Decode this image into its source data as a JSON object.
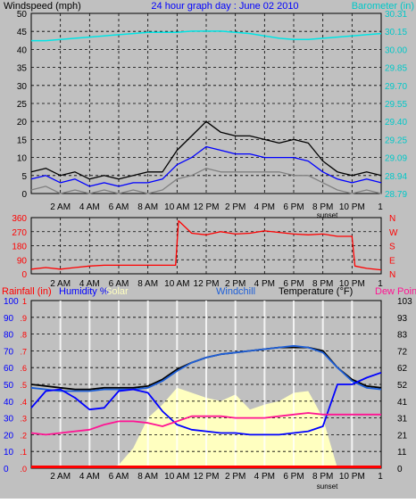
{
  "colors": {
    "frame": "#c0c0c0",
    "panel": "#c0c0c0",
    "grid": "#000000",
    "wind_gust": "#000000",
    "wind_avg": "#0000ff",
    "wind_low": "#808080",
    "barometer": "#00e5e5",
    "wind_dir": "#ff0000",
    "rain": "#ff0000",
    "humidity": "#0000ff",
    "solar": "#ffffc0",
    "windchill": "#1e5fd8",
    "temperature": "#000000",
    "dew_point": "#ff1493"
  },
  "header": {
    "left": "Windspeed (mph)",
    "center": "24 hour graph day : June 02 2010",
    "right": "Barometer (in)"
  },
  "time_axis": {
    "labels": [
      "2 AM",
      "4 AM",
      "6 AM",
      "8 AM",
      "10 AM",
      "12 PM",
      "2 PM",
      "4 PM",
      "6 PM",
      "8 PM",
      "10 PM"
    ],
    "hours": [
      2,
      4,
      6,
      8,
      10,
      12,
      14,
      16,
      18,
      20,
      22
    ],
    "sunset_label": "sunset",
    "sunset_hour": 20.3,
    "end_label": "1"
  },
  "chart_data": [
    {
      "type": "line",
      "title": "24 hour graph day : June 02 2010",
      "ylabel": "Windspeed (mph)",
      "ylim": [
        0,
        50
      ],
      "yticks": [
        "0",
        "5",
        "10",
        "15",
        "20",
        "25",
        "30",
        "35",
        "40",
        "45",
        "50"
      ],
      "y2label": "Barometer (in)",
      "y2lim": [
        28.79,
        30.31
      ],
      "y2ticks": [
        "28.79",
        "28.94",
        "29.09",
        "29.25",
        "29.40",
        "29.55",
        "29.70",
        "29.85",
        "30.00",
        "30.15",
        "30.31"
      ],
      "x": [
        0,
        1,
        2,
        3,
        4,
        5,
        6,
        7,
        8,
        9,
        10,
        11,
        12,
        13,
        14,
        15,
        16,
        17,
        18,
        19,
        20,
        21,
        22,
        23,
        24
      ],
      "series": [
        {
          "key": "wind_gust",
          "values": [
            6,
            7,
            5,
            6,
            4,
            5,
            4,
            5,
            6,
            6,
            12,
            16,
            20,
            17,
            16,
            16,
            15,
            14,
            15,
            14,
            9,
            6,
            5,
            6,
            5
          ]
        },
        {
          "key": "wind_avg",
          "values": [
            4,
            5,
            3,
            4,
            2,
            3,
            2,
            3,
            3,
            4,
            8,
            10,
            13,
            12,
            11,
            11,
            10,
            10,
            10,
            9,
            6,
            4,
            3,
            4,
            3
          ]
        },
        {
          "key": "wind_low",
          "values": [
            1,
            2,
            0,
            1,
            0,
            1,
            0,
            1,
            0,
            1,
            4,
            5,
            7,
            6,
            6,
            6,
            6,
            6,
            5,
            5,
            3,
            1,
            0,
            1,
            0
          ]
        },
        {
          "key": "barometer",
          "axis": "y2",
          "values": [
            30.08,
            30.08,
            30.09,
            30.1,
            30.11,
            30.12,
            30.13,
            30.14,
            30.15,
            30.15,
            30.15,
            30.16,
            30.16,
            30.16,
            30.15,
            30.14,
            30.12,
            30.1,
            30.09,
            30.09,
            30.1,
            30.11,
            30.12,
            30.13,
            30.14
          ]
        }
      ]
    },
    {
      "type": "line",
      "ylim": [
        0,
        360
      ],
      "yticks": [
        "0",
        "90",
        "180",
        "270",
        "360"
      ],
      "y2ticks": [
        "N",
        "E",
        "S",
        "W",
        "N"
      ],
      "x": [
        0,
        1,
        2,
        3,
        4,
        5,
        6,
        7,
        8,
        9,
        9.9,
        10.1,
        11,
        12,
        13,
        14,
        15,
        16,
        17,
        18,
        19,
        20,
        21,
        22,
        22.2,
        23,
        24
      ],
      "series": [
        {
          "key": "wind_dir",
          "values": [
            30,
            40,
            30,
            40,
            50,
            55,
            55,
            55,
            55,
            55,
            55,
            340,
            260,
            250,
            270,
            255,
            260,
            275,
            265,
            255,
            250,
            255,
            240,
            240,
            50,
            35,
            25
          ]
        }
      ]
    },
    {
      "type": "line",
      "ylabel": "Rainfall (in)",
      "legend": [
        "Rainfall (in)",
        "Humidity %",
        "Solar",
        "Windchill",
        "Temperature (°F)",
        "Dew Point"
      ],
      "ylim": [
        0,
        100
      ],
      "yticks": [
        "0",
        "10",
        "20",
        "30",
        "40",
        "50",
        "60",
        "70",
        "80",
        "90",
        "100"
      ],
      "rain_ticks": [
        ".0",
        ".1",
        ".2",
        ".3",
        ".4",
        ".5",
        ".6",
        ".7",
        ".8",
        ".9",
        "1"
      ],
      "y2lim": [
        0,
        103
      ],
      "y2ticks": [
        "0",
        "11",
        "21",
        "31",
        "41",
        "52",
        "62",
        "72",
        "83",
        "93",
        "103"
      ],
      "x": [
        0,
        1,
        2,
        3,
        4,
        5,
        6,
        7,
        8,
        9,
        10,
        11,
        12,
        13,
        14,
        15,
        16,
        17,
        18,
        19,
        20,
        21,
        22,
        23,
        24
      ],
      "series": [
        {
          "key": "temperature",
          "values": [
            50,
            49,
            48,
            47,
            47,
            48,
            48,
            48,
            49,
            53,
            59,
            63,
            66,
            68,
            69,
            70,
            71,
            72,
            72,
            72,
            70,
            60,
            53,
            49,
            48
          ]
        },
        {
          "key": "windchill",
          "values": [
            48,
            47,
            46,
            46,
            46,
            47,
            47,
            47,
            48,
            52,
            58,
            63,
            66,
            68,
            69,
            70,
            71,
            72,
            73,
            72,
            69,
            60,
            52,
            48,
            47
          ]
        },
        {
          "key": "humidity",
          "values": [
            36,
            46,
            47,
            42,
            35,
            36,
            46,
            47,
            45,
            34,
            26,
            23,
            22,
            21,
            21,
            20,
            20,
            20,
            21,
            22,
            25,
            50,
            50,
            54,
            57
          ]
        },
        {
          "key": "dew_point",
          "values": [
            21,
            20,
            21,
            22,
            23,
            26,
            28,
            28,
            27,
            25,
            28,
            31,
            31,
            31,
            30,
            30,
            30,
            31,
            32,
            33,
            32,
            32,
            32,
            32,
            32
          ]
        },
        {
          "key": "solar",
          "values": [
            0,
            0,
            0,
            0,
            0,
            0,
            2,
            12,
            30,
            38,
            48,
            45,
            42,
            40,
            44,
            35,
            38,
            40,
            45,
            46,
            30,
            0,
            0,
            0,
            0
          ]
        },
        {
          "key": "rain",
          "values": [
            0,
            0,
            0,
            0,
            0,
            0,
            0,
            0,
            0,
            0,
            0,
            0,
            0,
            0,
            0,
            0,
            0,
            0,
            0,
            0,
            0,
            0,
            0,
            0,
            0
          ]
        }
      ]
    }
  ]
}
